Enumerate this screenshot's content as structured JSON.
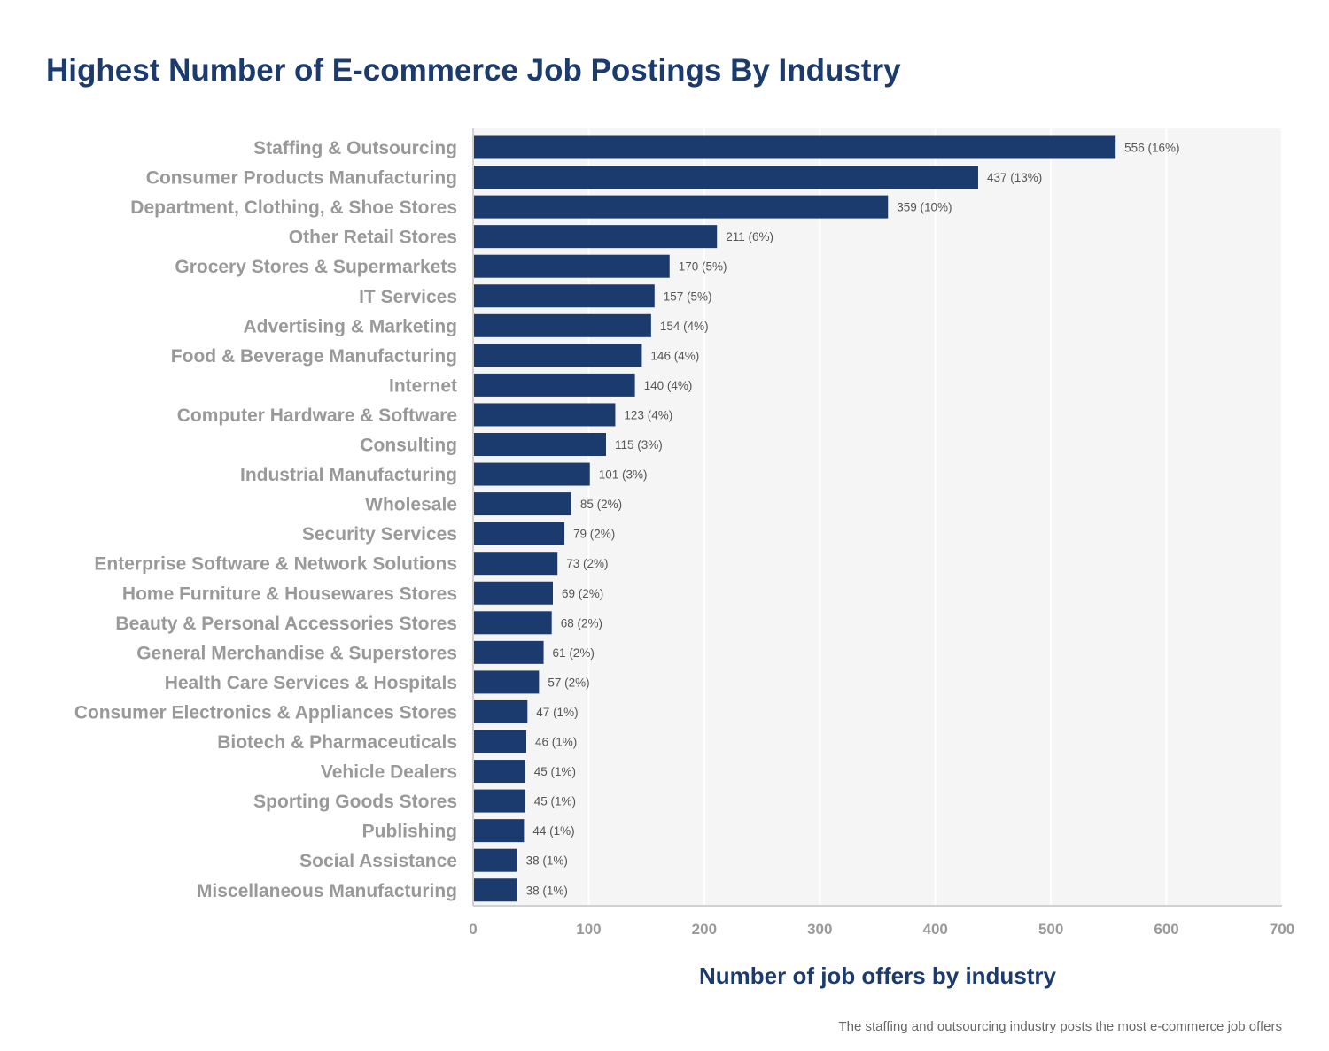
{
  "chart_data": {
    "type": "bar",
    "orientation": "horizontal",
    "title": "Highest Number of E-commerce Job Postings By Industry",
    "xlabel": "Number of job offers by industry",
    "ylabel": "",
    "footnote": "The staffing and outsourcing industry posts the most e-commerce job offers",
    "xlim": [
      0,
      700
    ],
    "xticks": [
      0,
      100,
      200,
      300,
      400,
      500,
      600,
      700
    ],
    "grid": true,
    "legend": "none",
    "categories": [
      "Staffing & Outsourcing",
      "Consumer Products Manufacturing",
      "Department, Clothing, & Shoe Stores",
      "Other Retail Stores",
      "Grocery Stores & Supermarkets",
      "IT Services",
      "Advertising & Marketing",
      "Food & Beverage Manufacturing",
      "Internet",
      "Computer Hardware & Software",
      "Consulting",
      "Industrial Manufacturing",
      "Wholesale",
      "Security Services",
      "Enterprise Software & Network Solutions",
      "Home Furniture & Housewares Stores",
      "Beauty & Personal Accessories Stores",
      "General Merchandise & Superstores",
      "Health Care Services & Hospitals",
      "Consumer Electronics & Appliances Stores",
      "Biotech & Pharmaceuticals",
      "Vehicle Dealers",
      "Sporting Goods Stores",
      "Publishing",
      "Social Assistance",
      "Miscellaneous Manufacturing"
    ],
    "values": [
      556,
      437,
      359,
      211,
      170,
      157,
      154,
      146,
      140,
      123,
      115,
      101,
      85,
      79,
      73,
      69,
      68,
      61,
      57,
      47,
      46,
      45,
      45,
      44,
      38,
      38
    ],
    "data_labels": [
      "556 (16%)",
      "437 (13%)",
      "359 (10%)",
      "211 (6%)",
      "170 (5%)",
      "157 (5%)",
      "154 (4%)",
      "146 (4%)",
      "140 (4%)",
      "123 (4%)",
      "115 (3%)",
      "101 (3%)",
      "85 (2%)",
      "79 (2%)",
      "73 (2%)",
      "69 (2%)",
      "68 (2%)",
      "61 (2%)",
      "57 (2%)",
      "47 (1%)",
      "46 (1%)",
      "45 (1%)",
      "45 (1%)",
      "44 (1%)",
      "38 (1%)",
      "38 (1%)"
    ],
    "colors": {
      "bar": "#1b3a6e",
      "title": "#1b3a6e",
      "plot_background": "#f5f5f5",
      "gridline": "#ffffff",
      "axis_line": "#d0d0d0",
      "category_label": "#999999",
      "data_label": "#555555"
    }
  }
}
